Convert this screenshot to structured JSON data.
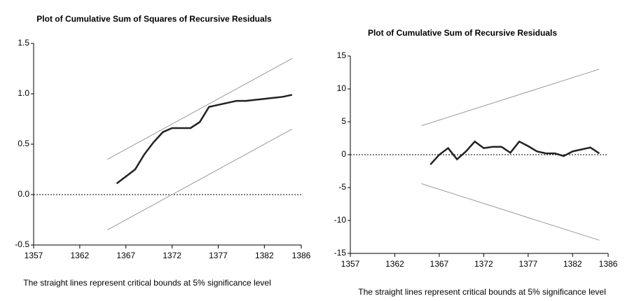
{
  "chart_data": [
    {
      "type": "line",
      "title": "Plot of Cumulative Sum of Squares of Recursive Residuals",
      "note": "The straight lines represent critical bounds at 5% significance level",
      "x": [
        1366,
        1367,
        1368,
        1369,
        1370,
        1371,
        1372,
        1373,
        1374,
        1375,
        1376,
        1377,
        1378,
        1379,
        1380,
        1381,
        1382,
        1383,
        1384,
        1385
      ],
      "xlim": [
        1357,
        1386
      ],
      "xticks": [
        1357,
        1362,
        1367,
        1372,
        1377,
        1382,
        1386
      ],
      "ylim": [
        -0.5,
        1.5
      ],
      "yticks": [
        {
          "value": -0.5,
          "label": "-0.5"
        },
        {
          "value": 0,
          "label": "0.0"
        },
        {
          "value": 0.5,
          "label": "0.5"
        },
        {
          "value": 1,
          "label": "1.0"
        },
        {
          "value": 1.5,
          "label": "1.5"
        }
      ],
      "reference_line": 0,
      "series": [
        {
          "color": "#222222",
          "values": [
            0.11,
            0.18,
            0.25,
            0.4,
            0.52,
            0.62,
            0.66,
            0.66,
            0.66,
            0.72,
            0.87,
            0.89,
            0.91,
            0.93,
            0.93,
            0.94,
            0.95,
            0.96,
            0.97,
            0.99
          ]
        },
        {
          "color": "#999999",
          "x": [
            1365,
            1385
          ],
          "values": [
            0.35,
            1.35
          ]
        },
        {
          "color": "#999999",
          "x": [
            1365,
            1385
          ],
          "values": [
            -0.35,
            0.65
          ]
        }
      ]
    },
    {
      "type": "line",
      "title": "Plot of Cumulative Sum of Recursive Residuals",
      "note": "The straight lines represent critical bounds at 5% significance level",
      "x": [
        1366,
        1367,
        1368,
        1369,
        1370,
        1371,
        1372,
        1373,
        1374,
        1375,
        1376,
        1377,
        1378,
        1379,
        1380,
        1381,
        1382,
        1383,
        1384,
        1385
      ],
      "xlim": [
        1357,
        1386
      ],
      "xticks": [
        1357,
        1362,
        1367,
        1372,
        1377,
        1382,
        1386
      ],
      "ylim": [
        -15,
        15
      ],
      "yticks": [
        -15,
        -10,
        -5,
        0,
        5,
        10,
        15
      ],
      "reference_line": 0,
      "series": [
        {
          "color": "#222222",
          "values": [
            -1.5,
            0,
            1,
            -0.7,
            0.5,
            2,
            1,
            1.2,
            1.2,
            0.3,
            2,
            1.3,
            0.5,
            0.2,
            0.2,
            -0.2,
            0.5,
            0.8,
            1.1,
            0.2
          ]
        },
        {
          "color": "#999999",
          "x": [
            1365,
            1385
          ],
          "values": [
            4.4,
            13
          ]
        },
        {
          "color": "#999999",
          "x": [
            1365,
            1385
          ],
          "values": [
            -4.4,
            -13
          ]
        }
      ]
    }
  ]
}
